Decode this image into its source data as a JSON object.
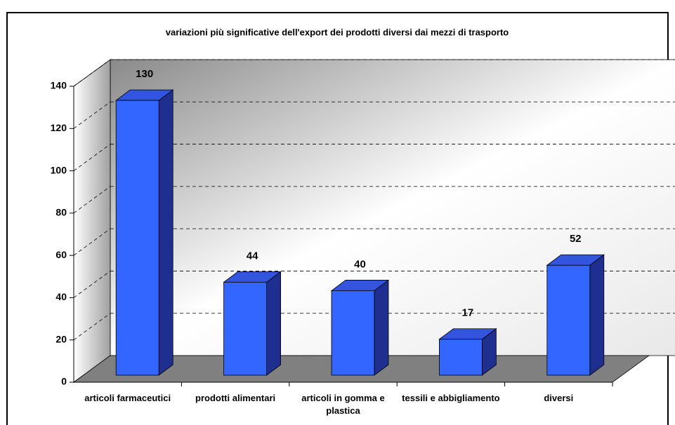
{
  "chart_data": {
    "type": "bar3d",
    "title": "variazioni più significative dell'export dei prodotti diversi dai mezzi di trasporto",
    "categories": [
      "articoli farmaceutici",
      "prodotti alimentari",
      "articoli in gomma e plastica",
      "tessili e abbigliamento",
      "diversi"
    ],
    "values": [
      130,
      44,
      40,
      17,
      52
    ],
    "color": "#3366ff",
    "ylim": [
      0,
      140
    ],
    "yticks": [
      0,
      20,
      40,
      60,
      80,
      100,
      120,
      140
    ],
    "grid": true
  }
}
